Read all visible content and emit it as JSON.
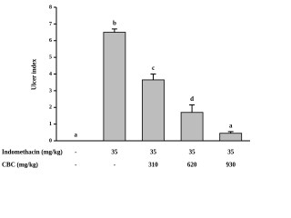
{
  "chart_data": {
    "type": "bar",
    "y_label": "Ulcer index",
    "values": [
      0,
      6.5,
      3.65,
      1.7,
      0.45
    ],
    "errors": [
      0,
      0.2,
      0.35,
      0.45,
      0.1
    ],
    "letters": [
      "a",
      "b",
      "c",
      "d",
      "a"
    ],
    "color": "#bdbdbd",
    "ylim": [
      0,
      8
    ],
    "yticks": [
      0,
      1,
      2,
      3,
      4,
      5,
      6,
      7,
      8
    ],
    "rows": [
      {
        "name": "Indomethacin (mg/kg)",
        "values": [
          "-",
          "35",
          "35",
          "35",
          "35"
        ]
      },
      {
        "name": "CBC (mg/kg)",
        "values": [
          "-",
          "-",
          "310",
          "620",
          "930"
        ]
      }
    ]
  }
}
